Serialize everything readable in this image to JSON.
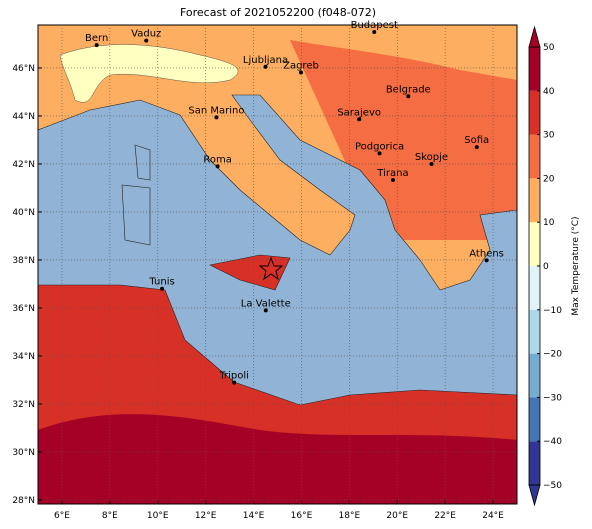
{
  "map": {
    "title": "Forecast of 2021052200 (f048-072)",
    "lonlim": [
      5,
      25
    ],
    "latlim": [
      27.83,
      47.79
    ],
    "grid": true,
    "lonticks": [
      {
        "value": 6,
        "label": "6°E"
      },
      {
        "value": 8,
        "label": "8°E"
      },
      {
        "value": 10,
        "label": "10°E"
      },
      {
        "value": 12,
        "label": "12°E"
      },
      {
        "value": 14,
        "label": "14°E"
      },
      {
        "value": 16,
        "label": "16°E"
      },
      {
        "value": 18,
        "label": "18°E"
      },
      {
        "value": 20,
        "label": "20°E"
      },
      {
        "value": 22,
        "label": "22°E"
      },
      {
        "value": 24,
        "label": "24°E"
      }
    ],
    "latticks": [
      {
        "value": 28,
        "label": "28°N"
      },
      {
        "value": 30,
        "label": "30°N"
      },
      {
        "value": 32,
        "label": "32°N"
      },
      {
        "value": 34,
        "label": "34°N"
      },
      {
        "value": 36,
        "label": "36°N"
      },
      {
        "value": 38,
        "label": "38°N"
      },
      {
        "value": 40,
        "label": "40°N"
      },
      {
        "value": 42,
        "label": "42°N"
      },
      {
        "value": 44,
        "label": "44°N"
      },
      {
        "value": 46,
        "label": "46°N"
      }
    ],
    "cities": [
      {
        "name": "Bern",
        "lon": 7.45,
        "lat": 46.95
      },
      {
        "name": "Vaduz",
        "lon": 9.52,
        "lat": 47.14
      },
      {
        "name": "Budapest",
        "lon": 19.04,
        "lat": 47.5
      },
      {
        "name": "Ljubljana",
        "lon": 14.5,
        "lat": 46.05
      },
      {
        "name": "Zagreb",
        "lon": 15.98,
        "lat": 45.81
      },
      {
        "name": "Belgrade",
        "lon": 20.46,
        "lat": 44.82
      },
      {
        "name": "San Marino",
        "lon": 12.45,
        "lat": 43.94
      },
      {
        "name": "Sarajevo",
        "lon": 18.41,
        "lat": 43.86
      },
      {
        "name": "Sofia",
        "lon": 23.32,
        "lat": 42.7
      },
      {
        "name": "Podgorica",
        "lon": 19.26,
        "lat": 42.44
      },
      {
        "name": "Skopje",
        "lon": 21.43,
        "lat": 42.0
      },
      {
        "name": "Roma",
        "lon": 12.5,
        "lat": 41.9
      },
      {
        "name": "Tirana",
        "lon": 19.82,
        "lat": 41.33
      },
      {
        "name": "Athens",
        "lon": 23.73,
        "lat": 37.98
      },
      {
        "name": "Tunis",
        "lon": 10.18,
        "lat": 36.8
      },
      {
        "name": "La Valette",
        "lon": 14.51,
        "lat": 35.9
      },
      {
        "name": "Tripoli",
        "lon": 13.19,
        "lat": 32.89
      }
    ],
    "colorbar": {
      "label": "Max Temperature (°C)",
      "lim": [
        -50,
        50
      ],
      "ticks": [
        {
          "value": -50,
          "label": "−50"
        },
        {
          "value": -40,
          "label": "−40"
        },
        {
          "value": -30,
          "label": "−30"
        },
        {
          "value": -20,
          "label": "−20"
        },
        {
          "value": -10,
          "label": "−10"
        },
        0,
        10,
        20,
        30,
        40,
        50
      ],
      "colors": [
        "#313695",
        "#4575b4",
        "#74add1",
        "#abd9e9",
        "#e0f3f8",
        "#ffffbf",
        "#fdae61",
        "#f46d43",
        "#d73027",
        "#a50026"
      ]
    }
  }
}
